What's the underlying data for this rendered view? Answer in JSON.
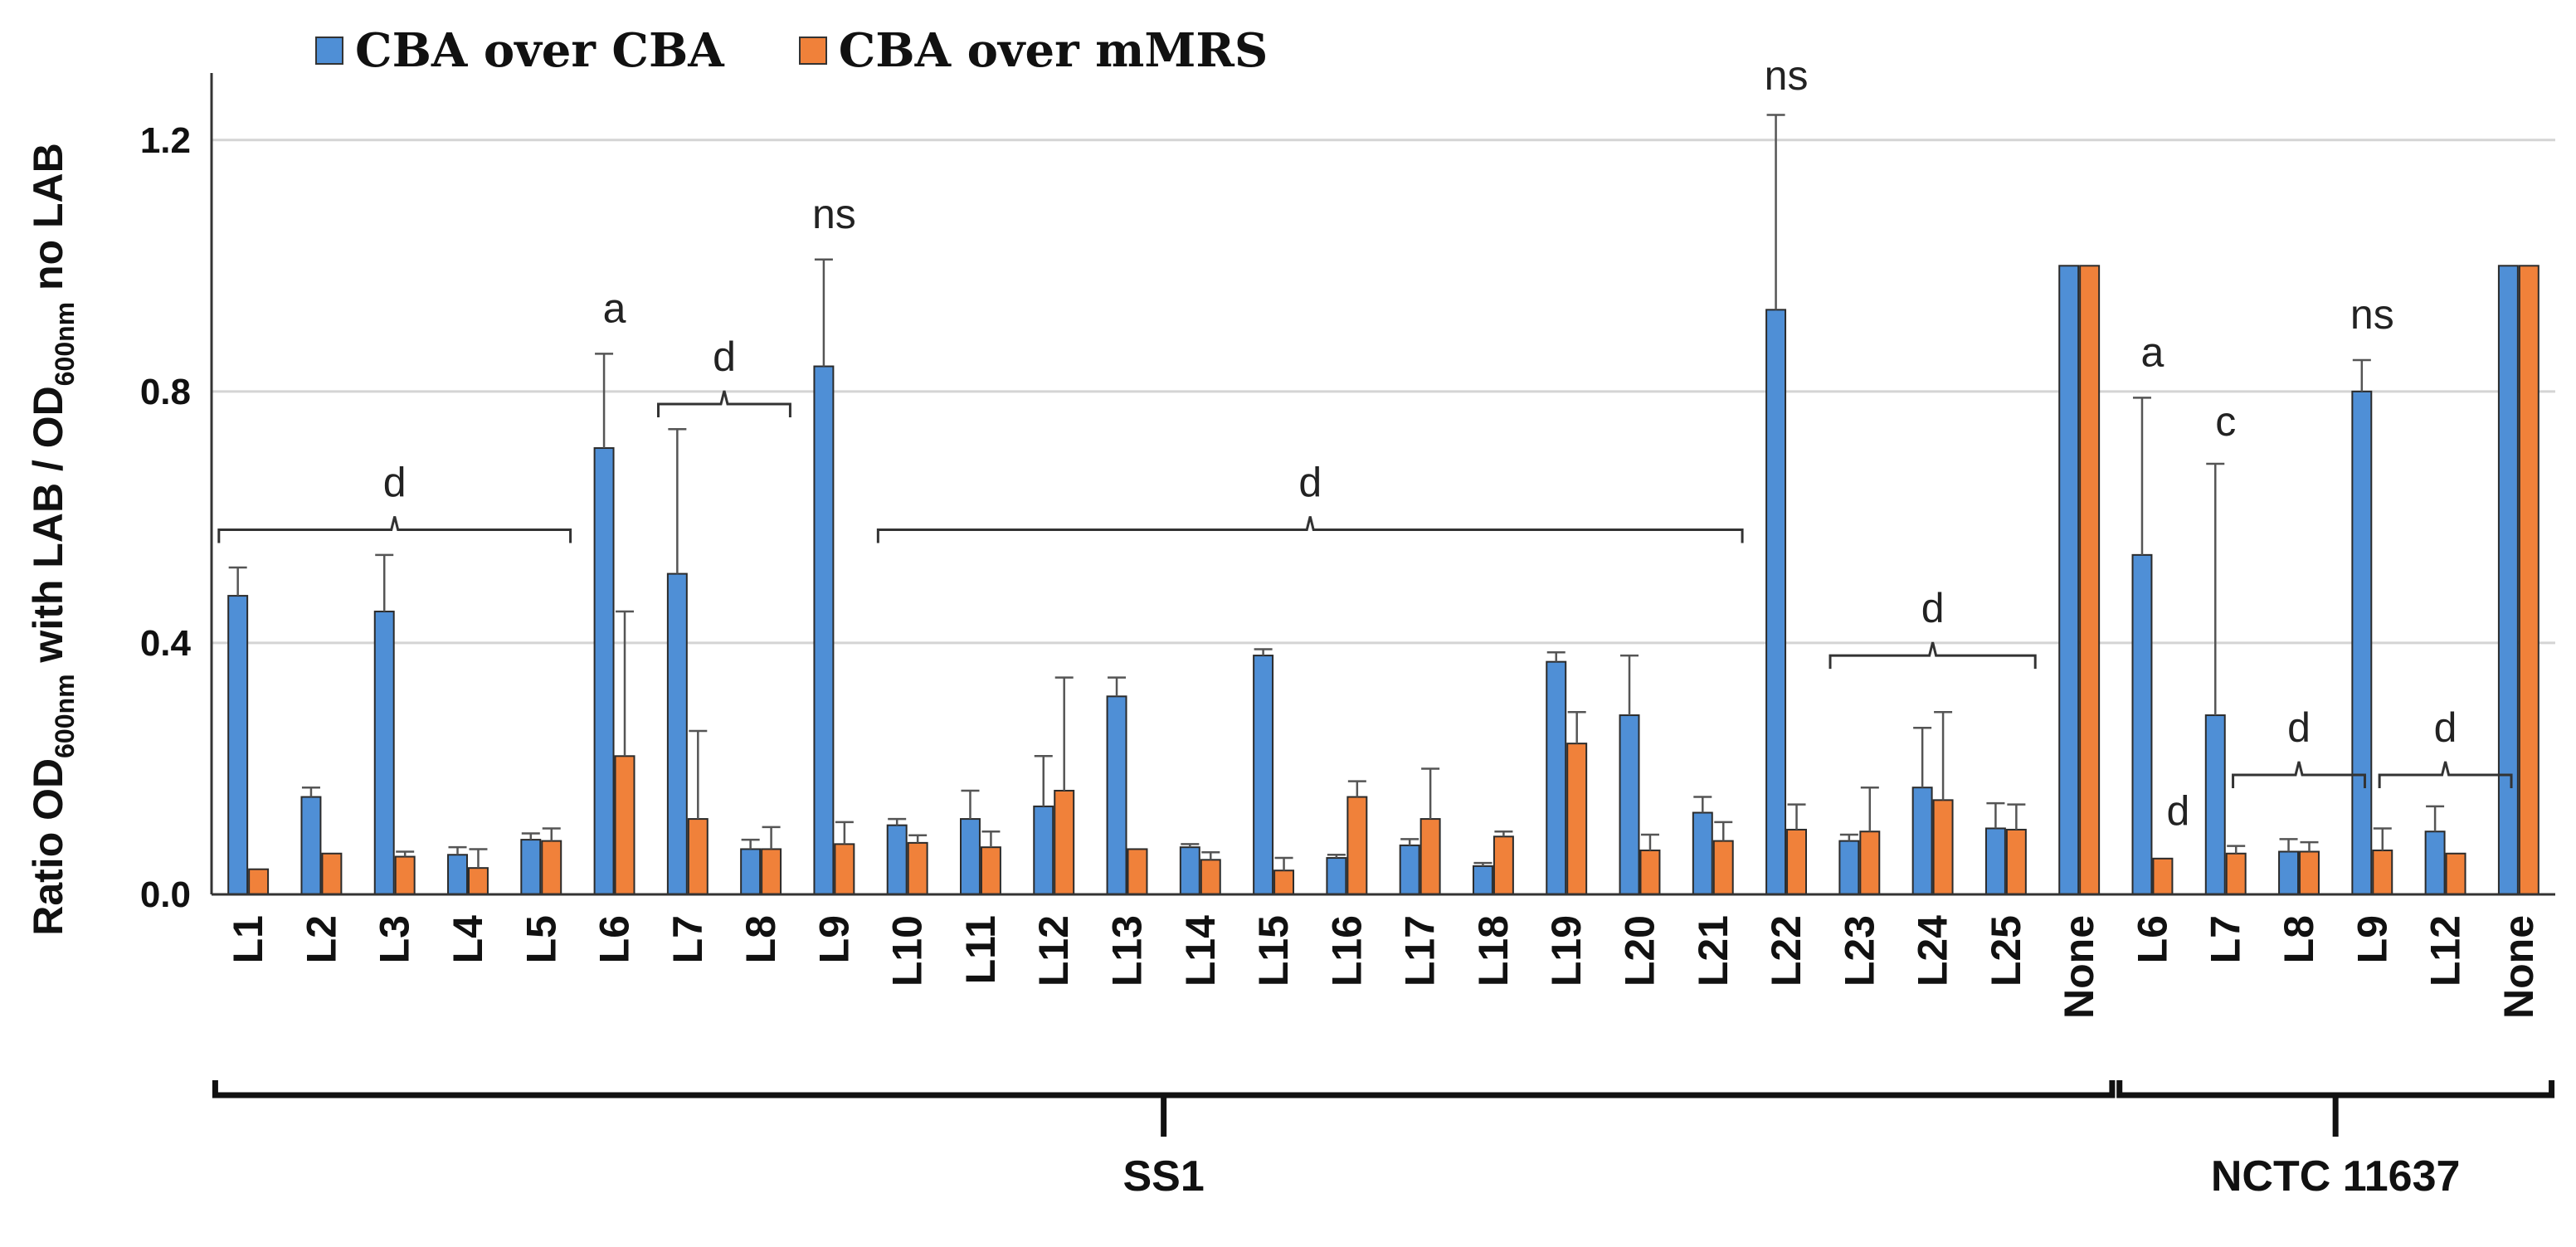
{
  "chart_data": {
    "type": "bar",
    "ylabel": "Ratio OD600nm with LAB / OD600nm no LAB",
    "ylabel_parts": {
      "a": "Ratio OD",
      "sub1": "600nm",
      "b": " with LAB / OD",
      "sub2": "600nm",
      "c": " no LAB"
    },
    "yticks": [
      "0.0",
      "0.4",
      "0.8",
      "1.2"
    ],
    "ylim": [
      0,
      1.3
    ],
    "grid": true,
    "colors": {
      "CBA over CBA": "#4F8FD6",
      "CBA over mMRS": "#F0813A"
    },
    "categories": [
      "L1",
      "L2",
      "L3",
      "L4",
      "L5",
      "L6",
      "L7",
      "L8",
      "L9",
      "L10",
      "L11",
      "L12",
      "L13",
      "L14",
      "L15",
      "L16",
      "L17",
      "L18",
      "L19",
      "L20",
      "L21",
      "L22",
      "L23",
      "L24",
      "L25",
      "None",
      "L6",
      "L7",
      "L8",
      "L9",
      "L12",
      "None"
    ],
    "series": [
      {
        "name": "CBA over CBA",
        "values": [
          0.475,
          0.155,
          0.45,
          0.063,
          0.087,
          0.71,
          0.51,
          0.072,
          0.84,
          0.11,
          0.12,
          0.14,
          0.315,
          0.075,
          0.38,
          0.058,
          0.078,
          0.045,
          0.37,
          0.285,
          0.13,
          0.93,
          0.085,
          0.17,
          0.105,
          1.0,
          0.54,
          0.285,
          0.068,
          0.8,
          0.1,
          1.0
        ],
        "errors": [
          0.045,
          0.015,
          0.09,
          0.012,
          0.01,
          0.15,
          0.23,
          0.015,
          0.17,
          0.01,
          0.045,
          0.08,
          0.03,
          0.005,
          0.01,
          0.005,
          0.01,
          0.005,
          0.015,
          0.095,
          0.025,
          0.31,
          0.01,
          0.095,
          0.04,
          0.0,
          0.25,
          0.4,
          0.02,
          0.05,
          0.04,
          0.0
        ]
      },
      {
        "name": "CBA over mMRS",
        "values": [
          0.04,
          0.065,
          0.06,
          0.042,
          0.085,
          0.22,
          0.12,
          0.072,
          0.08,
          0.082,
          0.075,
          0.165,
          0.072,
          0.055,
          0.038,
          0.155,
          0.12,
          0.092,
          0.24,
          0.07,
          0.085,
          0.103,
          0.1,
          0.15,
          0.103,
          1.0,
          0.057,
          0.065,
          0.068,
          0.07,
          0.065,
          1.0
        ],
        "errors": [
          0.0,
          0.0,
          0.008,
          0.03,
          0.02,
          0.23,
          0.14,
          0.035,
          0.035,
          0.012,
          0.025,
          0.18,
          0.0,
          0.012,
          0.02,
          0.025,
          0.08,
          0.008,
          0.05,
          0.025,
          0.03,
          0.04,
          0.07,
          0.14,
          0.04,
          0.0,
          0.0,
          0.012,
          0.015,
          0.035,
          0.0,
          0.0
        ]
      }
    ],
    "annotations": [
      {
        "text": "d",
        "span": [
          0,
          4
        ],
        "bracket": true,
        "y": 0.58
      },
      {
        "text": "a",
        "span": [
          5,
          5
        ],
        "bracket": false,
        "y": 0.91
      },
      {
        "text": "d",
        "span": [
          6,
          7
        ],
        "bracket": true,
        "y": 0.78
      },
      {
        "text": "ns",
        "span": [
          8,
          8
        ],
        "bracket": false,
        "y": 1.06
      },
      {
        "text": "d",
        "span": [
          9,
          20
        ],
        "bracket": true,
        "y": 0.58
      },
      {
        "text": "ns",
        "span": [
          21,
          21
        ],
        "bracket": false,
        "y": 1.28
      },
      {
        "text": "d",
        "span": [
          22,
          24
        ],
        "bracket": true,
        "y": 0.38
      },
      {
        "text": "a",
        "span": [
          26,
          26
        ],
        "bracket": false,
        "y": 0.84
      },
      {
        "text": "d",
        "span": [
          26,
          26
        ],
        "bracket": false,
        "y": 0.11,
        "offset": 0.35
      },
      {
        "text": "c",
        "span": [
          27,
          27
        ],
        "bracket": false,
        "y": 0.73
      },
      {
        "text": "d",
        "span": [
          27,
          28
        ],
        "bracket": true,
        "y": 0.19,
        "shift": 0.5
      },
      {
        "text": "ns",
        "span": [
          29,
          29
        ],
        "bracket": false,
        "y": 0.9
      },
      {
        "text": "d",
        "span": [
          29,
          30
        ],
        "bracket": true,
        "y": 0.19,
        "shift": 0.5
      }
    ],
    "groups": [
      {
        "name": "SS1",
        "span": [
          0,
          25
        ]
      },
      {
        "name": "NCTC 11637",
        "span": [
          26,
          31
        ]
      }
    ]
  }
}
